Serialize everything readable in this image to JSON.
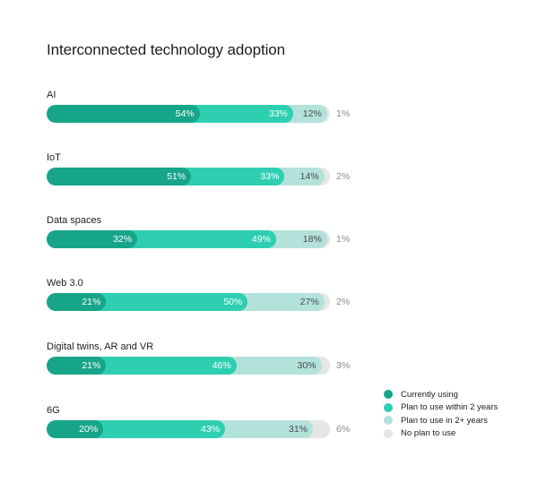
{
  "chart_data": {
    "type": "bar",
    "orientation": "horizontal",
    "stacked": true,
    "title": "Interconnected technology adoption",
    "categories": [
      "AI",
      "IoT",
      "Data spaces",
      "Web 3.0",
      "Digital twins, AR and VR",
      "6G"
    ],
    "series": [
      {
        "name": "Currently using",
        "color": "#17a589",
        "values": [
          54,
          51,
          32,
          21,
          21,
          20
        ],
        "labels": [
          "54%",
          "51%",
          "32%",
          "21%",
          "21%",
          "20%"
        ]
      },
      {
        "name": "Plan to use within 2 years",
        "color": "#2ecfb1",
        "values": [
          33,
          33,
          49,
          50,
          46,
          43
        ],
        "labels": [
          "33%",
          "33%",
          "49%",
          "50%",
          "46%",
          "43%"
        ]
      },
      {
        "name": "Plan to use in 2+ years",
        "color": "#b3e2da",
        "values": [
          12,
          14,
          18,
          27,
          30,
          31
        ],
        "labels": [
          "12%",
          "14%",
          "18%",
          "27%",
          "30%",
          "31%"
        ]
      },
      {
        "name": "No plan to use",
        "color": "#e6e6e6",
        "values": [
          1,
          2,
          1,
          2,
          3,
          6
        ],
        "labels": [
          "1%",
          "2%",
          "1%",
          "2%",
          "3%",
          "6%"
        ]
      }
    ],
    "xlim": [
      0,
      100
    ],
    "legend_position": "bottom-right",
    "grid": false
  }
}
